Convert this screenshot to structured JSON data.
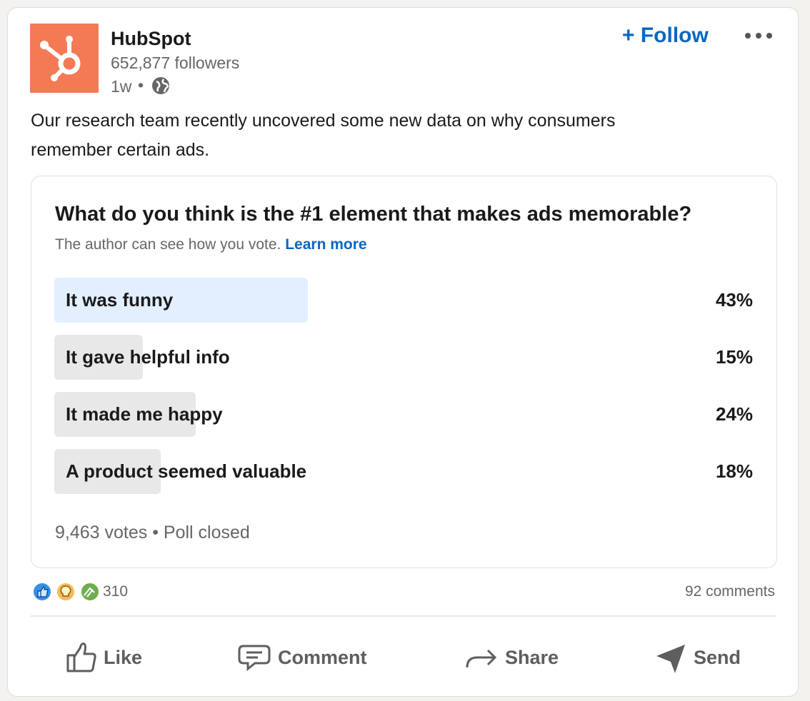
{
  "post": {
    "author": "HubSpot",
    "followers": "652,877 followers",
    "age": "1w",
    "follow": "Follow",
    "text_lines": [
      "Our research team recently uncovered some new data on why consumers",
      "remember certain ads."
    ],
    "poll": {
      "question": "What do you think is the #1 element that makes ads memorable?",
      "notice": "The author can see how you vote.",
      "learn_more": "Learn more",
      "options": [
        {
          "text": "It was funny",
          "value": 43,
          "value_label": "43%",
          "selected": true
        },
        {
          "text": "It gave helpful info",
          "value": 15,
          "value_label": "15%",
          "selected": false
        },
        {
          "text": "It made me happy",
          "value": 24,
          "value_label": "24%",
          "selected": false
        },
        {
          "text": "A product seemed valuable",
          "value": 18,
          "value_label": "18%",
          "selected": false
        }
      ],
      "votes": "9,463 votes",
      "status": "Poll closed"
    },
    "reactions": "310",
    "comments": "92 comments",
    "actions": [
      "Like",
      "Comment",
      "Share",
      "Send"
    ]
  }
}
